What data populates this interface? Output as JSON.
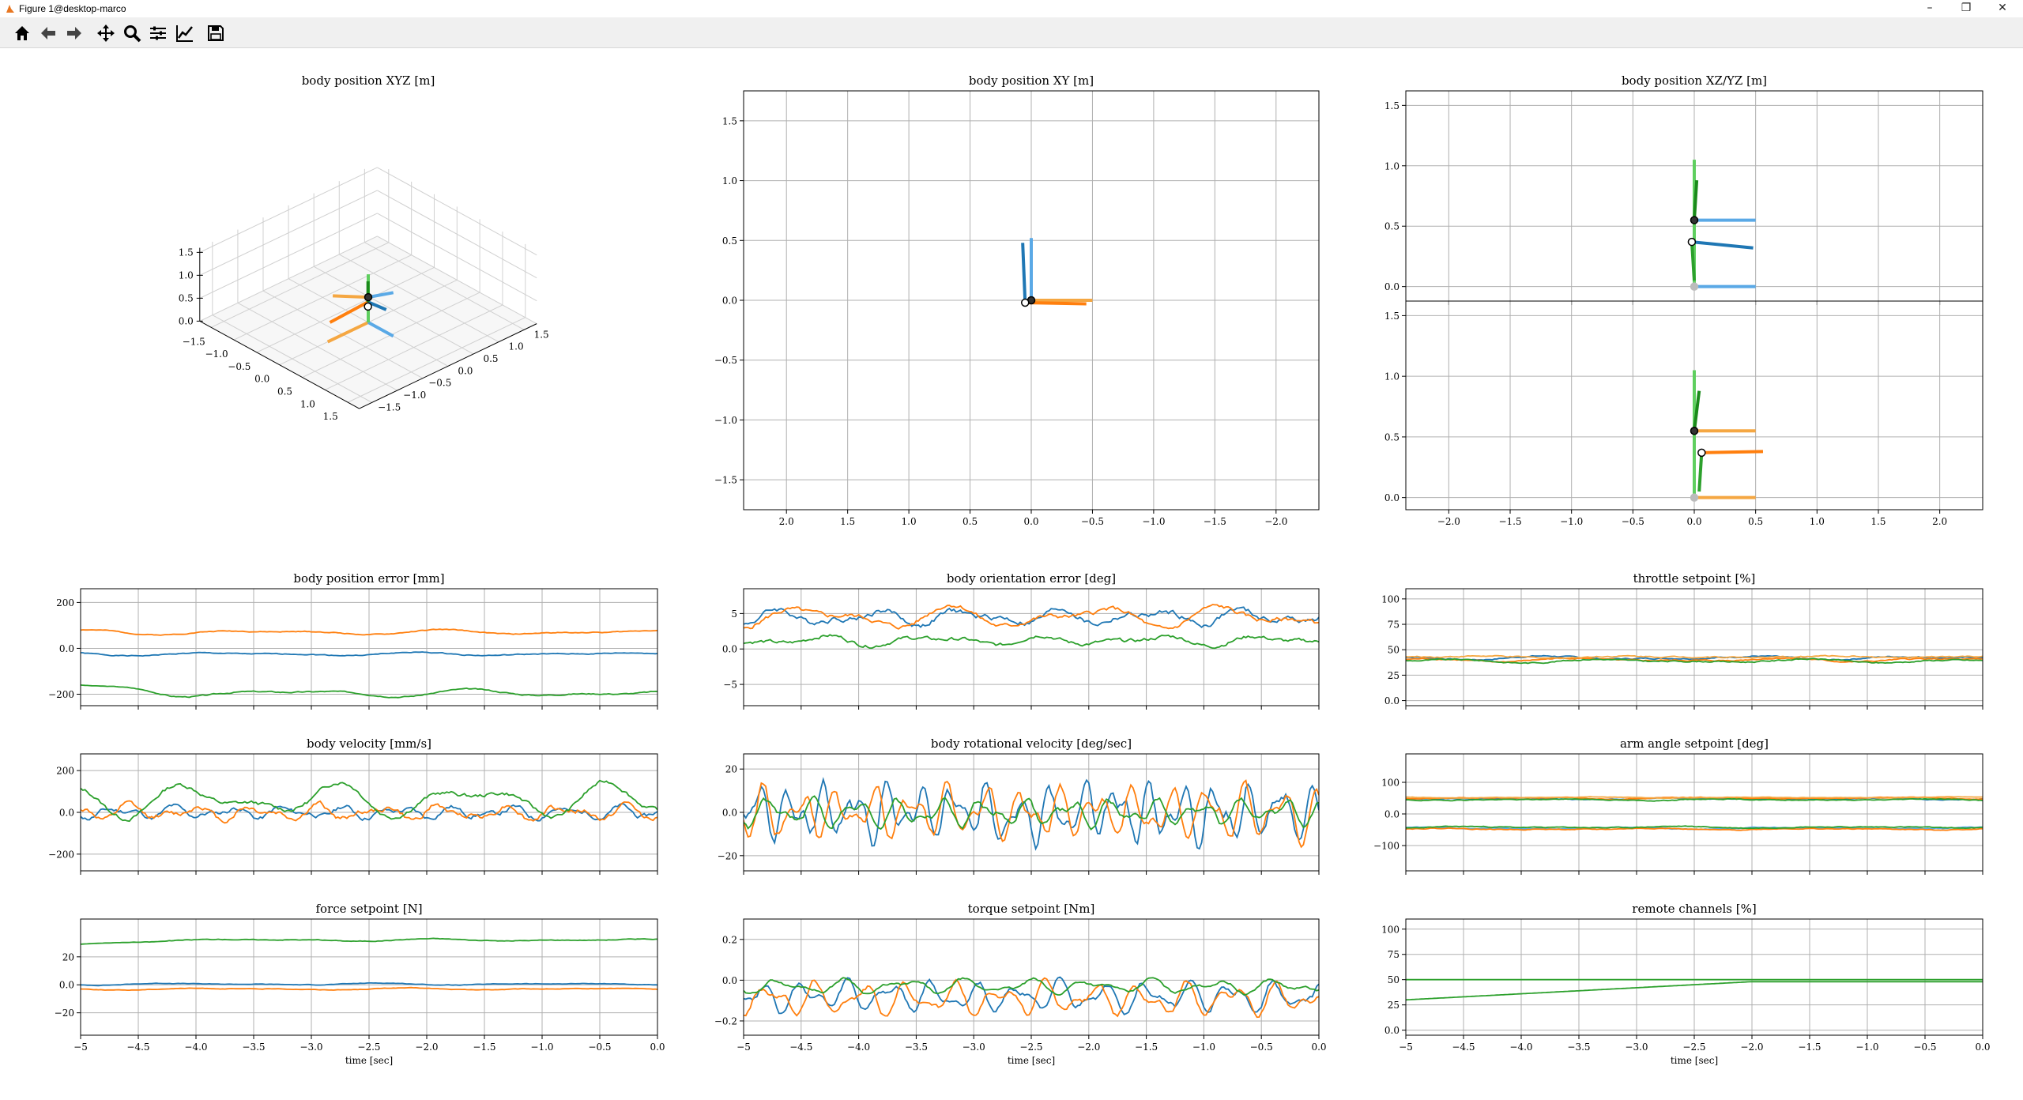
{
  "window": {
    "title": "Figure 1@desktop-marco"
  },
  "toolbar": {
    "buttons": [
      {
        "name": "home-icon"
      },
      {
        "name": "back-arrow-icon"
      },
      {
        "name": "forward-arrow-icon"
      },
      {
        "name": "pan-icon"
      },
      {
        "name": "zoom-icon"
      },
      {
        "name": "configure-subplots-icon"
      },
      {
        "name": "edit-axis-icon"
      },
      {
        "name": "save-icon"
      }
    ]
  },
  "colors": {
    "blue": "#1f77b4",
    "orange": "#ff7f0e",
    "green": "#2ca02c",
    "light_blue": "#5aa9e6",
    "light_orange": "#f5a742",
    "light_green": "#5fcf5f",
    "dark_green": "#1a8a1a",
    "grid": "#b0b0b0"
  },
  "chart_data": [
    {
      "id": "xyz",
      "type": "line3d",
      "title": "body position XYZ [m]",
      "z_ticks": [
        "0.0",
        "0.5",
        "1.0",
        "1.5"
      ],
      "x_ticks": [
        "1.5",
        "1.0",
        "0.5",
        "0.0",
        "−0.5",
        "−1.0",
        "−1.5"
      ],
      "y_ticks": [
        "1.5",
        "1.0",
        "0.5",
        "0.0",
        "−0.5",
        "−1.0",
        "−1.5"
      ]
    },
    {
      "id": "xy",
      "type": "line",
      "title": "body position XY [m]",
      "xlim": [
        2.35,
        -2.35
      ],
      "ylim": [
        -1.75,
        1.75
      ],
      "x_ticks": [
        2.0,
        1.5,
        1.0,
        0.5,
        0.0,
        -0.5,
        -1.0,
        -1.5,
        -2.0
      ],
      "y_ticks": [
        -1.5,
        -1.0,
        -0.5,
        0.0,
        0.5,
        1.0,
        1.5
      ],
      "segments": [
        {
          "color": "light_blue",
          "x": [
            0.0,
            0.0
          ],
          "y": [
            0.0,
            0.52
          ]
        },
        {
          "color": "light_orange",
          "x": [
            0.0,
            -0.5
          ],
          "y": [
            0.0,
            0.0
          ]
        },
        {
          "color": "blue",
          "x": [
            0.05,
            0.07
          ],
          "y": [
            -0.02,
            0.48
          ]
        },
        {
          "color": "orange",
          "x": [
            0.05,
            -0.45
          ],
          "y": [
            -0.02,
            -0.03
          ]
        }
      ],
      "markers": [
        {
          "x": 0.0,
          "y": 0.0,
          "fill": "dark"
        },
        {
          "x": 0.05,
          "y": -0.02,
          "fill": "white"
        }
      ]
    },
    {
      "id": "xz",
      "type": "line",
      "title": "body position XZ/YZ [m]",
      "xlim": [
        -2.35,
        2.35
      ],
      "ylim": [
        -0.12,
        1.62
      ],
      "y_ticks": [
        0.0,
        0.5,
        1.0,
        1.5
      ],
      "segments": [
        {
          "color": "light_green",
          "x": [
            0.0,
            0.0
          ],
          "y": [
            0.0,
            1.05
          ]
        },
        {
          "color": "light_blue",
          "x": [
            0.0,
            0.5
          ],
          "y": [
            0.0,
            0.0
          ]
        },
        {
          "color": "light_blue",
          "x": [
            0.0,
            0.5
          ],
          "y": [
            0.55,
            0.55
          ]
        },
        {
          "color": "dark_green",
          "x": [
            0.0,
            0.02
          ],
          "y": [
            0.55,
            0.88
          ]
        },
        {
          "color": "blue",
          "x": [
            -0.02,
            0.48
          ],
          "y": [
            0.37,
            0.32
          ]
        },
        {
          "color": "green",
          "x": [
            -0.02,
            0.0
          ],
          "y": [
            0.37,
            0.05
          ]
        }
      ],
      "markers": [
        {
          "x": 0.0,
          "y": 0.55,
          "fill": "dark"
        },
        {
          "x": -0.02,
          "y": 0.37,
          "fill": "white"
        },
        {
          "x": 0.0,
          "y": 0.0,
          "fill": "grey"
        }
      ]
    },
    {
      "id": "yz",
      "type": "line",
      "title": "",
      "xlim": [
        -2.35,
        2.35
      ],
      "ylim": [
        -0.1,
        1.62
      ],
      "x_ticks": [
        -2.0,
        -1.5,
        -1.0,
        -0.5,
        0.0,
        0.5,
        1.0,
        1.5,
        2.0
      ],
      "y_ticks": [
        0.0,
        0.5,
        1.0,
        1.5
      ],
      "segments": [
        {
          "color": "light_green",
          "x": [
            0.0,
            0.0
          ],
          "y": [
            0.0,
            1.05
          ]
        },
        {
          "color": "light_orange",
          "x": [
            0.0,
            0.5
          ],
          "y": [
            0.0,
            0.0
          ]
        },
        {
          "color": "light_orange",
          "x": [
            0.0,
            0.5
          ],
          "y": [
            0.55,
            0.55
          ]
        },
        {
          "color": "dark_green",
          "x": [
            0.0,
            0.04
          ],
          "y": [
            0.55,
            0.88
          ]
        },
        {
          "color": "orange",
          "x": [
            0.06,
            0.56
          ],
          "y": [
            0.37,
            0.38
          ]
        },
        {
          "color": "green",
          "x": [
            0.06,
            0.04
          ],
          "y": [
            0.37,
            0.05
          ]
        }
      ],
      "markers": [
        {
          "x": 0.0,
          "y": 0.55,
          "fill": "dark"
        },
        {
          "x": 0.06,
          "y": 0.37,
          "fill": "white"
        },
        {
          "x": 0.0,
          "y": 0.0,
          "fill": "grey"
        }
      ]
    },
    {
      "id": "pos_err",
      "type": "line",
      "title": "body position error [mm]",
      "ylim": [
        -250,
        260
      ],
      "y_ticks": [
        -200,
        0,
        200
      ],
      "series": [
        {
          "color": "blue",
          "base": -25,
          "amp": 8,
          "noise": 3,
          "seed": 1
        },
        {
          "color": "orange",
          "base": 70,
          "amp": 12,
          "noise": 3,
          "seed": 2
        },
        {
          "color": "green",
          "base": -195,
          "amp": 18,
          "noise": 4,
          "seed": 3,
          "start": -160
        }
      ]
    },
    {
      "id": "ori_err",
      "type": "line",
      "title": "body orientation error [deg]",
      "ylim": [
        -8,
        8.5
      ],
      "y_ticks": [
        -5,
        0,
        5
      ],
      "series": [
        {
          "color": "blue",
          "base": 4.5,
          "amp": 1.2,
          "noise": 0.6,
          "seed": 4,
          "freq": 6
        },
        {
          "color": "orange",
          "base": 4.5,
          "amp": 1.8,
          "noise": 0.5,
          "seed": 5,
          "freq": 4
        },
        {
          "color": "green",
          "base": 1.2,
          "amp": 0.8,
          "noise": 0.4,
          "seed": 6,
          "freq": 5
        }
      ]
    },
    {
      "id": "throttle",
      "type": "line",
      "title": "throttle setpoint [%]",
      "ylim": [
        -5,
        110
      ],
      "y_ticks": [
        0,
        25,
        50,
        75,
        100
      ],
      "series": [
        {
          "color": "blue",
          "base": 42,
          "amp": 2,
          "noise": 1,
          "seed": 7
        },
        {
          "color": "orange",
          "base": 40,
          "amp": 2,
          "noise": 1,
          "seed": 8
        },
        {
          "color": "green",
          "base": 39,
          "amp": 2,
          "noise": 1,
          "seed": 9
        },
        {
          "color": "light_orange",
          "base": 43,
          "amp": 1,
          "noise": 1,
          "seed": 10
        }
      ]
    },
    {
      "id": "body_vel",
      "type": "line",
      "title": "body velocity [mm/s]",
      "ylim": [
        -280,
        280
      ],
      "y_ticks": [
        -200,
        0,
        200
      ],
      "series": [
        {
          "color": "blue",
          "base": 0,
          "amp": 30,
          "noise": 18,
          "seed": 11,
          "freq": 10
        },
        {
          "color": "orange",
          "base": 0,
          "amp": 40,
          "noise": 20,
          "seed": 12,
          "freq": 9
        },
        {
          "color": "green",
          "base": 60,
          "amp": 90,
          "noise": 15,
          "seed": 13,
          "freq": 4
        }
      ]
    },
    {
      "id": "rot_vel",
      "type": "line",
      "title": "body rotational velocity [deg/sec]",
      "ylim": [
        -27,
        27
      ],
      "y_ticks": [
        -20,
        0,
        20
      ],
      "series": [
        {
          "color": "blue",
          "base": 0,
          "amp": 14,
          "noise": 4,
          "seed": 14,
          "freq": 17
        },
        {
          "color": "orange",
          "base": 0,
          "amp": 13,
          "noise": 3,
          "seed": 15,
          "freq": 15
        },
        {
          "color": "green",
          "base": 0,
          "amp": 7,
          "noise": 2,
          "seed": 16,
          "freq": 13
        }
      ]
    },
    {
      "id": "arm",
      "type": "line",
      "title": "arm angle setpoint [deg]",
      "ylim": [
        -180,
        190
      ],
      "y_ticks": [
        -100,
        0,
        100
      ],
      "series": [
        {
          "color": "blue",
          "base": 48,
          "amp": 3,
          "noise": 2,
          "seed": 17
        },
        {
          "color": "orange",
          "base": 50,
          "amp": 3,
          "noise": 2,
          "seed": 18
        },
        {
          "color": "green",
          "base": 45,
          "amp": 3,
          "noise": 2,
          "seed": 19
        },
        {
          "color": "light_orange",
          "base": 52,
          "amp": 2,
          "noise": 1,
          "seed": 20
        },
        {
          "color": "light_blue",
          "base": -45,
          "amp": 3,
          "noise": 2,
          "seed": 21
        },
        {
          "color": "orange",
          "base": -48,
          "amp": 3,
          "noise": 2,
          "seed": 22
        },
        {
          "color": "green",
          "base": -42,
          "amp": 3,
          "noise": 2,
          "seed": 23
        }
      ]
    },
    {
      "id": "force",
      "type": "line",
      "title": "force setpoint [N]",
      "ylim": [
        -36,
        47
      ],
      "xlabel": "time [sec]",
      "y_ticks": [
        -20,
        0,
        20
      ],
      "x_ticks": [
        -5.0,
        -4.5,
        -4.0,
        -3.5,
        -3.0,
        -2.5,
        -2.0,
        -1.5,
        -1.0,
        -0.5,
        0.0
      ],
      "series": [
        {
          "color": "blue",
          "base": 0.5,
          "amp": 0.8,
          "noise": 0.3,
          "seed": 24
        },
        {
          "color": "orange",
          "base": -3,
          "amp": 0.8,
          "noise": 0.3,
          "seed": 25
        },
        {
          "color": "green",
          "base": 32,
          "amp": 1,
          "noise": 0.4,
          "seed": 26,
          "start": 29
        }
      ]
    },
    {
      "id": "torque",
      "type": "line",
      "title": "torque setpoint [Nm]",
      "ylim": [
        -0.27,
        0.3
      ],
      "xlabel": "time [sec]",
      "y_ticks": [
        -0.2,
        0.0,
        0.2
      ],
      "x_ticks": [
        -5.0,
        -4.5,
        -4.0,
        -3.5,
        -3.0,
        -2.5,
        -2.0,
        -1.5,
        -1.0,
        -0.5,
        0.0
      ],
      "series": [
        {
          "color": "blue",
          "base": -0.08,
          "amp": 0.08,
          "noise": 0.02,
          "seed": 27,
          "freq": 13
        },
        {
          "color": "orange",
          "base": -0.09,
          "amp": 0.09,
          "noise": 0.02,
          "seed": 28,
          "freq": 12
        },
        {
          "color": "green",
          "base": -0.03,
          "amp": 0.04,
          "noise": 0.01,
          "seed": 29,
          "freq": 9
        }
      ]
    },
    {
      "id": "remote",
      "type": "line",
      "title": "remote channels [%]",
      "ylim": [
        -5,
        110
      ],
      "xlabel": "time [sec]",
      "y_ticks": [
        0,
        25,
        50,
        75,
        100
      ],
      "x_ticks": [
        -5.0,
        -4.5,
        -4.0,
        -3.5,
        -3.0,
        -2.5,
        -2.0,
        -1.5,
        -1.0,
        -0.5,
        0.0
      ],
      "series": [
        {
          "color": "green",
          "base": 50,
          "amp": 0,
          "noise": 0,
          "seed": 30
        },
        {
          "color": "green",
          "base": 48,
          "amp": 0,
          "noise": 0,
          "seed": 31,
          "rise": [
            30,
            48
          ]
        }
      ]
    }
  ]
}
